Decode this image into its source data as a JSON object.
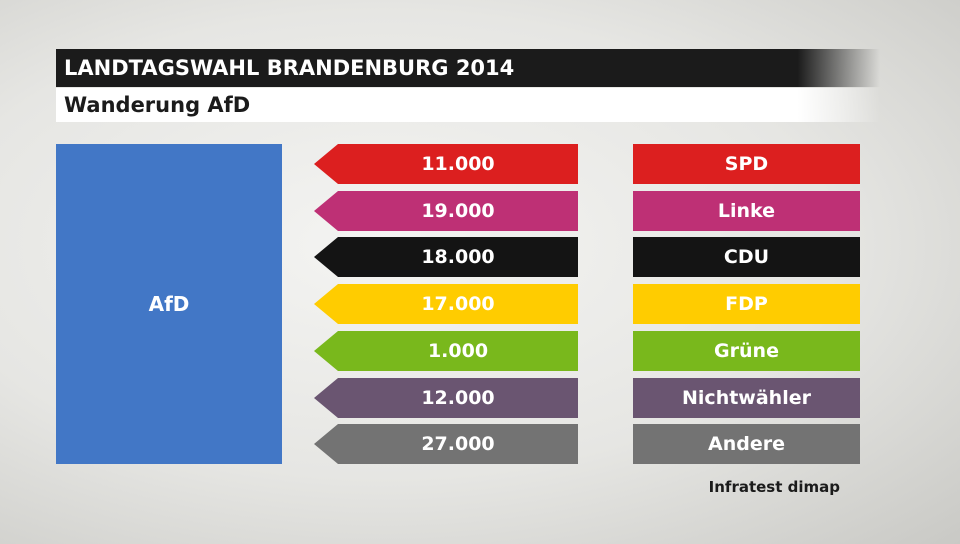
{
  "header": {
    "title": "LANDTAGSWAHL BRANDENBURG 2014",
    "subtitle": "Wanderung AfD"
  },
  "target": {
    "label": "AfD",
    "color": "#4277c6"
  },
  "source": "Infratest dimap",
  "chart_data": {
    "type": "table",
    "title": "LANDTAGSWAHL BRANDENBURG 2014",
    "subtitle": "Wanderung AfD",
    "target": "AfD",
    "rows": [
      {
        "party": "SPD",
        "value": 11000,
        "value_label": "11.000",
        "color": "#dc1f1f"
      },
      {
        "party": "Linke",
        "value": 19000,
        "value_label": "19.000",
        "color": "#be3075"
      },
      {
        "party": "CDU",
        "value": 18000,
        "value_label": "18.000",
        "color": "#141414"
      },
      {
        "party": "FDP",
        "value": 17000,
        "value_label": "17.000",
        "color": "#ffcc00"
      },
      {
        "party": "Grüne",
        "value": 1000,
        "value_label": "1.000",
        "color": "#79b81c"
      },
      {
        "party": "Nichtwähler",
        "value": 12000,
        "value_label": "12.000",
        "color": "#6a5571"
      },
      {
        "party": "Andere",
        "value": 27000,
        "value_label": "27.000",
        "color": "#737373"
      }
    ]
  }
}
